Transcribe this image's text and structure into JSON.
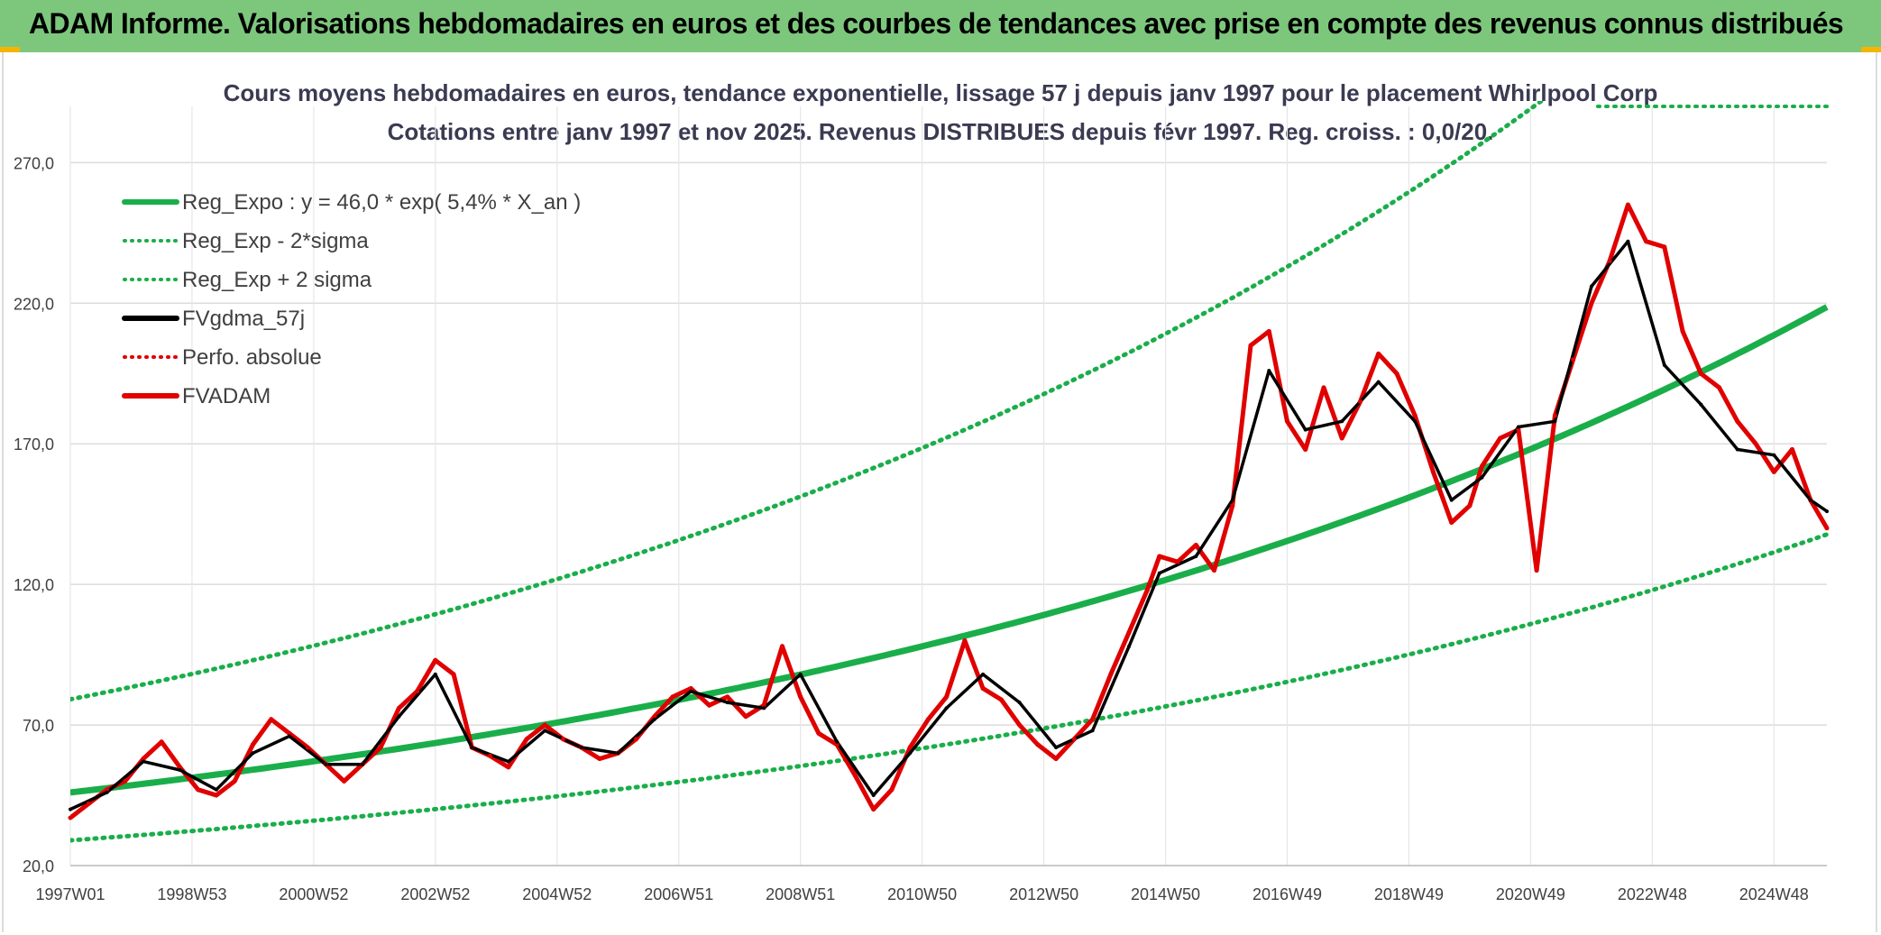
{
  "header": {
    "title": "ADAM Informe. Valorisations hebdomadaires en euros et des courbes de tendances avec prise en compte des revenus connus distribués"
  },
  "chart_data": {
    "type": "line",
    "title": "Cours moyens hebdomadaires en euros, tendance exponentielle, lissage 57 j depuis janv 1997 pour le placement Whirlpool Corp",
    "subtitle": "Cotations entre janv 1997 et nov 2025. Revenus DISTRIBUES depuis févr 1997. Reg. croiss. : 0,0/20.",
    "xlabel": "",
    "ylabel": "",
    "x_range": [
      1997.0,
      2025.87
    ],
    "ylim": [
      20,
      290
    ],
    "y_ticks": [
      20,
      70,
      120,
      170,
      220,
      270
    ],
    "y_tick_labels": [
      "20,0",
      "70,0",
      "120,0",
      "170,0",
      "220,0",
      "270,0"
    ],
    "x_ticks": [
      1997.0,
      1999.0,
      2001.0,
      2003.0,
      2005.0,
      2007.0,
      2009.0,
      2011.0,
      2013.0,
      2015.0,
      2017.0,
      2019.0,
      2021.0,
      2023.0,
      2025.0
    ],
    "x_tick_labels": [
      "1997W01",
      "1998W53",
      "2000W52",
      "2002W52",
      "2004W52",
      "2006W51",
      "2008W51",
      "2010W50",
      "2012W50",
      "2014W50",
      "2016W49",
      "2018W49",
      "2020W49",
      "2022W48",
      "2024W48"
    ],
    "regression": {
      "a": 46.0,
      "rate": 0.054,
      "sigma_mult_low": 0.63,
      "sigma_mult_high": 1.72
    },
    "legend": [
      {
        "label": "Reg_Expo : y = 46,0 * exp( 5,4% *  X_an )",
        "color": "#1aae4a",
        "style": "solid"
      },
      {
        "label": "Reg_Exp - 2*sigma",
        "color": "#1aae4a",
        "style": "dotted"
      },
      {
        "label": "Reg_Exp + 2 sigma",
        "color": "#1aae4a",
        "style": "dotted"
      },
      {
        "label": "FVgdma_57j",
        "color": "#000000",
        "style": "solid"
      },
      {
        "label": "Perfo. absolue",
        "color": "#e00000",
        "style": "dotted"
      },
      {
        "label": "FVADAM",
        "color": "#e00000",
        "style": "solid"
      }
    ],
    "series": [
      {
        "name": "FVADAM",
        "x": [
          1997.0,
          1997.3,
          1997.6,
          1997.9,
          1998.2,
          1998.5,
          1998.8,
          1999.1,
          1999.4,
          1999.7,
          2000.0,
          2000.3,
          2000.6,
          2000.9,
          2001.2,
          2001.5,
          2001.8,
          2002.1,
          2002.4,
          2002.7,
          2003.0,
          2003.3,
          2003.6,
          2003.9,
          2004.2,
          2004.5,
          2004.8,
          2005.1,
          2005.4,
          2005.7,
          2006.0,
          2006.3,
          2006.6,
          2006.9,
          2007.2,
          2007.5,
          2007.8,
          2008.1,
          2008.4,
          2008.7,
          2009.0,
          2009.3,
          2009.6,
          2009.9,
          2010.2,
          2010.5,
          2010.8,
          2011.1,
          2011.4,
          2011.7,
          2012.0,
          2012.3,
          2012.6,
          2012.9,
          2013.2,
          2013.5,
          2013.8,
          2014.1,
          2014.4,
          2014.7,
          2014.9,
          2015.2,
          2015.5,
          2015.8,
          2016.1,
          2016.4,
          2016.7,
          2017.0,
          2017.3,
          2017.6,
          2017.9,
          2018.2,
          2018.5,
          2018.8,
          2019.1,
          2019.4,
          2019.7,
          2020.0,
          2020.2,
          2020.5,
          2020.8,
          2021.1,
          2021.4,
          2021.7,
          2022.0,
          2022.3,
          2022.6,
          2022.9,
          2023.2,
          2023.5,
          2023.8,
          2024.1,
          2024.4,
          2024.7,
          2025.0,
          2025.3,
          2025.6,
          2025.87
        ],
        "values": [
          37,
          42,
          47,
          50,
          58,
          64,
          55,
          47,
          45,
          50,
          63,
          72,
          67,
          62,
          56,
          50,
          56,
          62,
          76,
          82,
          93,
          88,
          62,
          59,
          55,
          65,
          70,
          65,
          62,
          58,
          60,
          65,
          73,
          80,
          83,
          77,
          80,
          73,
          77,
          98,
          80,
          67,
          63,
          52,
          40,
          47,
          62,
          72,
          80,
          100,
          83,
          79,
          70,
          63,
          58,
          65,
          72,
          88,
          103,
          118,
          130,
          128,
          134,
          125,
          148,
          205,
          210,
          178,
          168,
          190,
          172,
          185,
          202,
          195,
          180,
          160,
          142,
          148,
          162,
          172,
          175,
          125,
          180,
          200,
          220,
          235,
          255,
          242,
          240,
          210,
          195,
          190,
          178,
          170,
          160,
          168,
          150,
          140
        ]
      },
      {
        "name": "FVgdma_57j",
        "x": [
          1997.0,
          1997.6,
          1998.2,
          1998.8,
          1999.4,
          2000.0,
          2000.6,
          2001.2,
          2001.8,
          2002.4,
          2003.0,
          2003.6,
          2004.2,
          2004.8,
          2005.4,
          2006.0,
          2006.6,
          2007.2,
          2007.8,
          2008.4,
          2009.0,
          2009.6,
          2010.2,
          2010.8,
          2011.4,
          2012.0,
          2012.6,
          2013.2,
          2013.8,
          2014.4,
          2014.9,
          2015.5,
          2016.1,
          2016.7,
          2017.3,
          2017.9,
          2018.5,
          2019.1,
          2019.7,
          2020.2,
          2020.8,
          2021.4,
          2022.0,
          2022.6,
          2023.2,
          2023.8,
          2024.4,
          2025.0,
          2025.6,
          2025.87
        ],
        "values": [
          40,
          46,
          57,
          54,
          47,
          60,
          66,
          56,
          56,
          73,
          88,
          62,
          57,
          68,
          62,
          60,
          72,
          82,
          78,
          76,
          88,
          64,
          45,
          60,
          76,
          88,
          78,
          62,
          68,
          98,
          124,
          130,
          150,
          196,
          175,
          178,
          192,
          178,
          150,
          158,
          176,
          178,
          226,
          242,
          198,
          184,
          168,
          166,
          150,
          146
        ]
      }
    ]
  }
}
